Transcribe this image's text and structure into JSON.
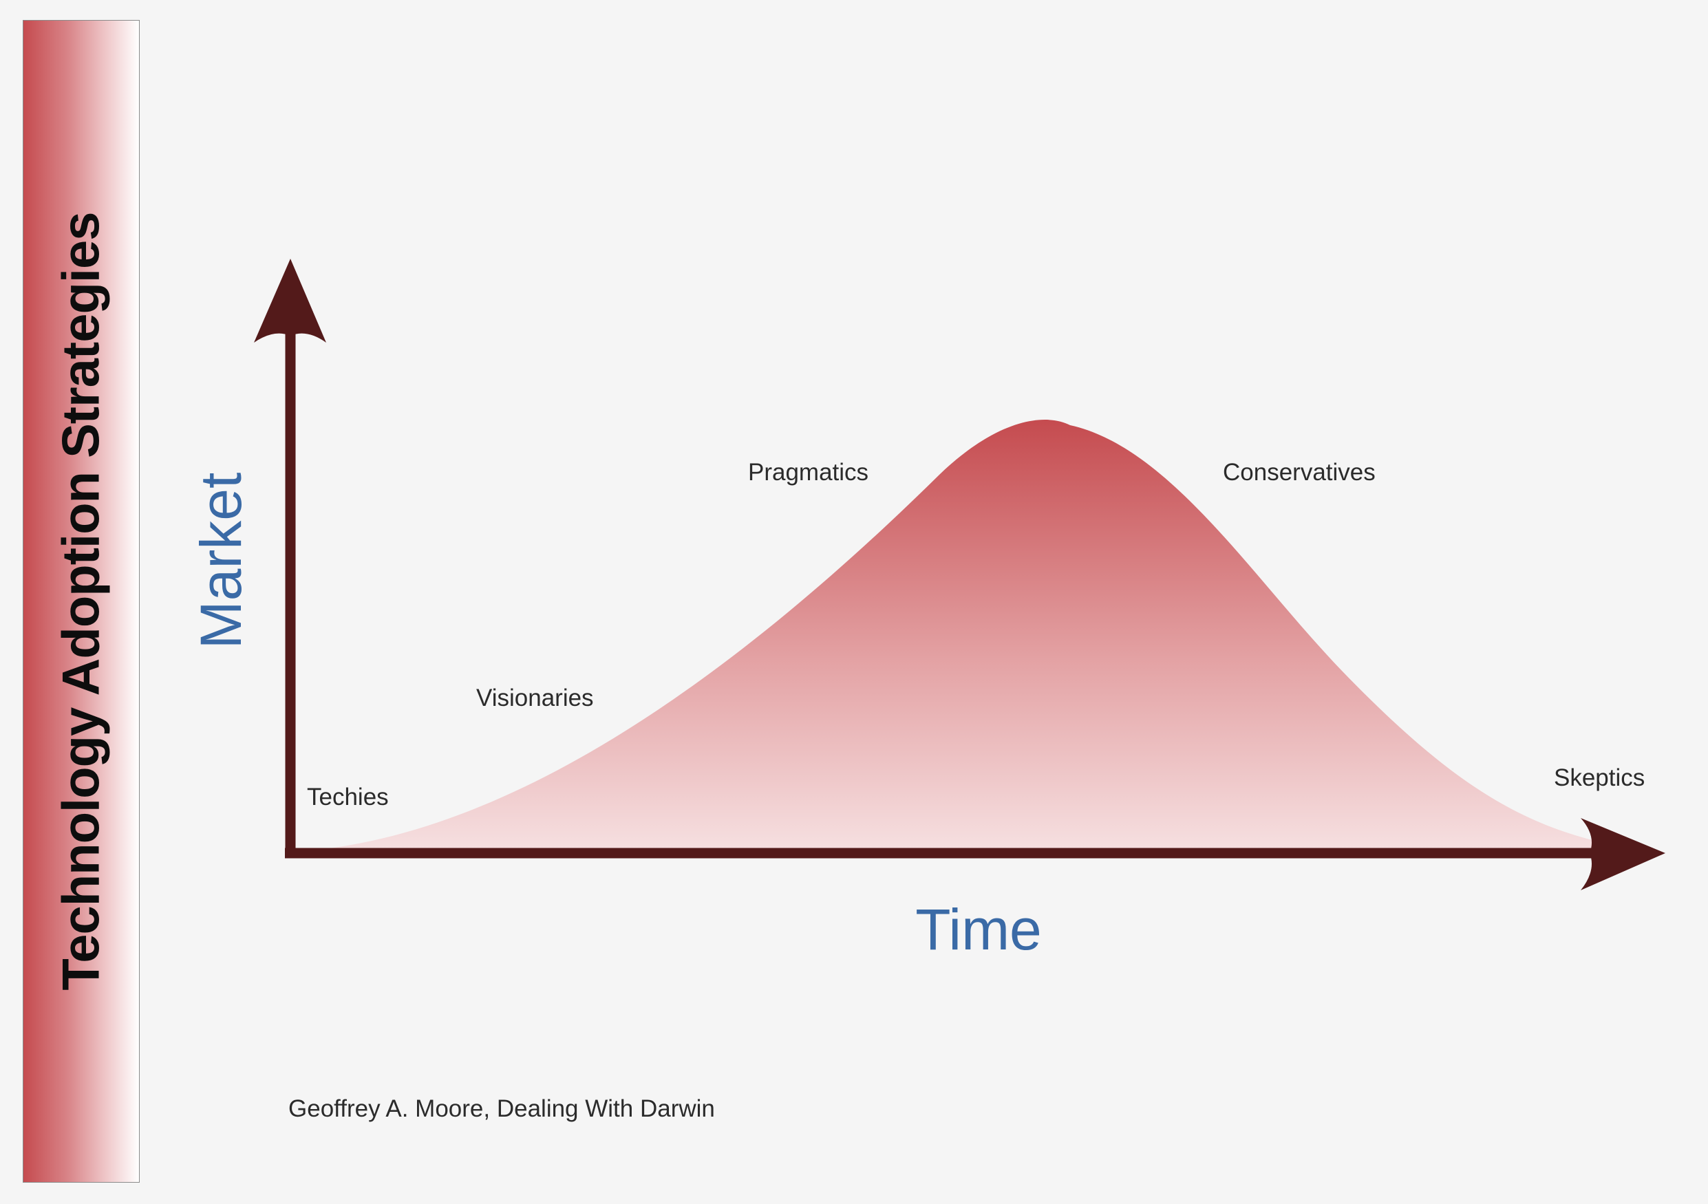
{
  "sidebar": {
    "title": "Technology Adoption Strategies"
  },
  "diagram": {
    "y_axis_label": "Market",
    "x_axis_label": "Time",
    "segments": {
      "techies": "Techies",
      "visionaries": "Visionaries",
      "pragmatics": "Pragmatics",
      "conservatives": "Conservatives",
      "skeptics": "Skeptics"
    },
    "citation": "Geoffrey A. Moore, Dealing With Darwin"
  },
  "colors": {
    "axis": "#531a1a",
    "curve_top": "#c54b4f",
    "curve_bottom": "#f6e0e1",
    "axis_label": "#3a6aa6"
  }
}
